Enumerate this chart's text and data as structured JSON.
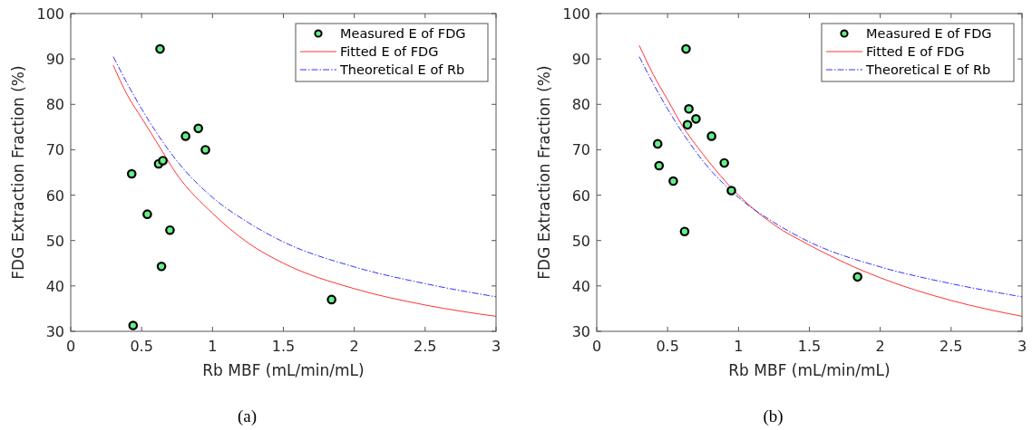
{
  "chart_data": [
    {
      "type": "scatter",
      "xlabel": "Rb MBF (mL/min/mL)",
      "ylabel": "FDG Extraction Fraction (%)",
      "xlim": [
        0,
        3
      ],
      "ylim": [
        30,
        100
      ],
      "xticks": [
        0,
        0.5,
        1,
        1.5,
        2,
        2.5,
        3
      ],
      "yticks": [
        30,
        40,
        50,
        60,
        70,
        80,
        90,
        100
      ],
      "legend": "top right",
      "annotations": [
        "(a)"
      ],
      "series": [
        {
          "name": "Measured E of FDG",
          "marker": "circle",
          "color": "#66ee88",
          "x": [
            0.43,
            0.44,
            0.54,
            0.62,
            0.63,
            0.64,
            0.65,
            0.7,
            0.81,
            0.9,
            0.95,
            1.84
          ],
          "values": [
            64.7,
            31.3,
            55.8,
            66.9,
            92.2,
            44.3,
            67.6,
            52.3,
            73,
            74.7,
            70,
            37
          ]
        },
        {
          "name": "Fitted E of FDG",
          "type": "line",
          "color": "#ff3333",
          "line_style": "solid",
          "x": [
            0.3,
            0.4,
            0.5,
            0.6,
            0.75,
            1,
            1.25,
            1.5,
            2,
            2.5,
            3
          ],
          "values": [
            88.6,
            82,
            77,
            72,
            64.5,
            56,
            49.5,
            45,
            39.4,
            35.8,
            33.3
          ]
        },
        {
          "name": "Theoretical E of Rb",
          "type": "line",
          "color": "#3333ff",
          "line_style": "dashed",
          "x": [
            0.3,
            0.4,
            0.5,
            0.6,
            0.75,
            1,
            1.25,
            1.5,
            2,
            2.5,
            3
          ],
          "values": [
            90.5,
            84.5,
            79,
            74,
            67.5,
            59.5,
            54,
            49.7,
            44.2,
            40.5,
            37.6
          ]
        }
      ]
    },
    {
      "type": "scatter",
      "xlabel": "Rb MBF (mL/min/mL)",
      "ylabel": "FDG Extraction Fraction (%)",
      "xlim": [
        0,
        3
      ],
      "ylim": [
        30,
        100
      ],
      "xticks": [
        0,
        0.5,
        1,
        1.5,
        2,
        2.5,
        3
      ],
      "yticks": [
        30,
        40,
        50,
        60,
        70,
        80,
        90,
        100
      ],
      "legend": "top right",
      "annotations": [
        "(b)"
      ],
      "series": [
        {
          "name": "Measured E of FDG",
          "marker": "circle",
          "color": "#66ee88",
          "x": [
            0.43,
            0.44,
            0.54,
            0.62,
            0.63,
            0.64,
            0.65,
            0.7,
            0.81,
            0.9,
            0.95,
            1.84
          ],
          "values": [
            71.3,
            66.5,
            63.1,
            52,
            92.2,
            75.5,
            79,
            76.8,
            73,
            67.1,
            61,
            42
          ]
        },
        {
          "name": "Fitted E of FDG",
          "type": "line",
          "color": "#ff3333",
          "line_style": "solid",
          "x": [
            0.3,
            0.4,
            0.5,
            0.6,
            0.75,
            1,
            1.25,
            1.5,
            2,
            2.5,
            3
          ],
          "values": [
            93,
            86.5,
            81,
            75.5,
            69,
            60,
            53.5,
            49,
            41.8,
            36.8,
            33.3
          ]
        },
        {
          "name": "Theoretical E of Rb",
          "type": "line",
          "color": "#3333ff",
          "line_style": "dashed",
          "x": [
            0.3,
            0.4,
            0.5,
            0.6,
            0.75,
            1,
            1.25,
            1.5,
            2,
            2.5,
            3
          ],
          "values": [
            90.5,
            84.5,
            79,
            74,
            67.5,
            59.5,
            54,
            49.7,
            44.2,
            40.5,
            37.6
          ]
        }
      ]
    }
  ]
}
